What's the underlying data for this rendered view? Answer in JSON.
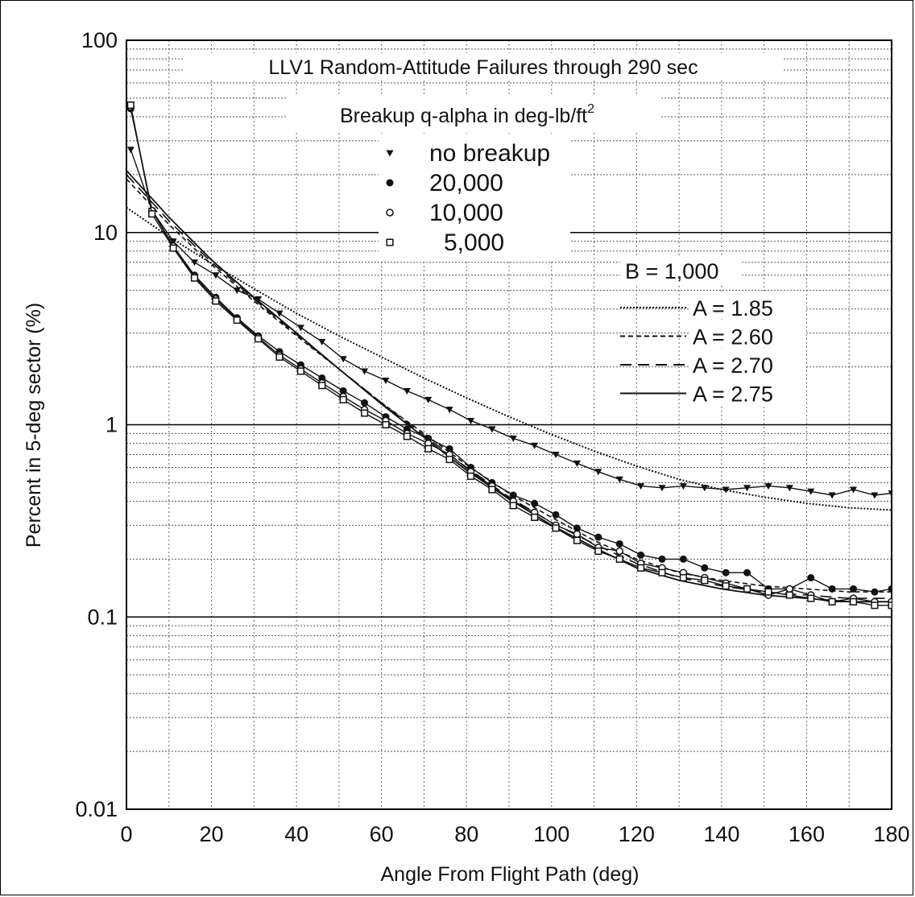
{
  "chart_data": {
    "type": "line",
    "title": "LLV1 Random-Attitude Failures through 290 sec",
    "subtitle": "Breakup q-alpha in deg-lb/ft",
    "subtitle_sup": "2",
    "xlabel": "Angle From Flight Path (deg)",
    "ylabel": "Percent in 5-deg sector (%)",
    "xlim": [
      0,
      180
    ],
    "ylim": [
      0.01,
      100
    ],
    "yscale": "log",
    "grid": true,
    "x_ticks": [
      0,
      20,
      40,
      60,
      80,
      100,
      120,
      140,
      160,
      180
    ],
    "y_ticks": [
      {
        "value": 100,
        "label": "100"
      },
      {
        "value": 10,
        "label": "10"
      },
      {
        "value": 1,
        "label": "1"
      },
      {
        "value": 0.1,
        "label": "0.1"
      },
      {
        "value": 0.01,
        "label": "0.01"
      }
    ],
    "legend_placement": "top-center",
    "x": [
      1,
      6,
      11,
      16,
      21,
      26,
      31,
      36,
      41,
      46,
      51,
      56,
      61,
      66,
      71,
      76,
      81,
      86,
      91,
      96,
      101,
      106,
      111,
      116,
      121,
      126,
      131,
      136,
      141,
      146,
      151,
      156,
      161,
      166,
      171,
      176,
      180
    ],
    "series": [
      {
        "name": "no breakup",
        "marker": "triangle",
        "values": [
          27,
          13,
          9,
          7,
          6,
          5,
          4.5,
          3.8,
          3.2,
          2.7,
          2.2,
          1.9,
          1.7,
          1.5,
          1.35,
          1.2,
          1.05,
          0.95,
          0.85,
          0.78,
          0.7,
          0.63,
          0.57,
          0.52,
          0.48,
          0.47,
          0.48,
          0.47,
          0.46,
          0.47,
          0.48,
          0.47,
          0.45,
          0.43,
          0.46,
          0.43,
          0.44
        ]
      },
      {
        "name": "20,000",
        "marker": "filled-circle",
        "values": [
          44,
          13,
          8.5,
          6,
          4.6,
          3.6,
          2.9,
          2.4,
          2.05,
          1.75,
          1.5,
          1.3,
          1.1,
          0.95,
          0.85,
          0.75,
          0.6,
          0.5,
          0.43,
          0.39,
          0.34,
          0.29,
          0.26,
          0.24,
          0.21,
          0.2,
          0.2,
          0.18,
          0.17,
          0.17,
          0.14,
          0.14,
          0.16,
          0.14,
          0.14,
          0.135,
          0.14
        ]
      },
      {
        "name": "10,000",
        "marker": "open-circle",
        "values": [
          45,
          13,
          8.5,
          5.9,
          4.5,
          3.55,
          2.85,
          2.3,
          1.95,
          1.65,
          1.4,
          1.2,
          1.05,
          0.9,
          0.8,
          0.7,
          0.57,
          0.48,
          0.4,
          0.35,
          0.3,
          0.27,
          0.23,
          0.22,
          0.19,
          0.18,
          0.17,
          0.16,
          0.15,
          0.14,
          0.13,
          0.14,
          0.13,
          0.12,
          0.125,
          0.12,
          0.12
        ]
      },
      {
        "name": "5,000",
        "marker": "open-square",
        "values": [
          46,
          12.5,
          8.3,
          5.8,
          4.4,
          3.5,
          2.8,
          2.25,
          1.9,
          1.6,
          1.35,
          1.15,
          1,
          0.87,
          0.75,
          0.66,
          0.54,
          0.46,
          0.38,
          0.33,
          0.29,
          0.25,
          0.22,
          0.2,
          0.18,
          0.17,
          0.16,
          0.155,
          0.145,
          0.14,
          0.135,
          0.13,
          0.125,
          0.12,
          0.12,
          0.115,
          0.115
        ]
      }
    ],
    "fits_label": "B = 1,000",
    "fits": [
      {
        "name": "A = 1.85",
        "style": "dotted",
        "x": [
          0,
          10,
          20,
          30,
          40,
          50,
          60,
          70,
          80,
          90,
          100,
          110,
          120,
          130,
          140,
          150,
          160,
          170,
          180
        ],
        "values": [
          13.5,
          9.5,
          6.9,
          5.1,
          3.8,
          2.9,
          2.25,
          1.75,
          1.38,
          1.1,
          0.89,
          0.73,
          0.61,
          0.52,
          0.46,
          0.42,
          0.39,
          0.37,
          0.36
        ]
      },
      {
        "name": "A = 2.60",
        "style": "short-dash",
        "x": [
          0,
          10,
          20,
          30,
          40,
          50,
          60,
          70,
          80,
          90,
          100,
          110,
          120,
          130,
          140,
          150,
          160,
          170,
          180
        ],
        "values": [
          19,
          11,
          6.8,
          4.4,
          2.9,
          1.95,
          1.3,
          0.9,
          0.62,
          0.44,
          0.33,
          0.25,
          0.2,
          0.17,
          0.155,
          0.145,
          0.14,
          0.135,
          0.135
        ]
      },
      {
        "name": "A = 2.70",
        "style": "long-dash",
        "x": [
          0,
          10,
          20,
          30,
          40,
          50,
          60,
          70,
          80,
          90,
          100,
          110,
          120,
          130,
          140,
          150,
          160,
          170,
          180
        ],
        "values": [
          20,
          11.5,
          7,
          4.5,
          2.95,
          1.95,
          1.3,
          0.88,
          0.6,
          0.42,
          0.31,
          0.24,
          0.19,
          0.16,
          0.145,
          0.135,
          0.13,
          0.125,
          0.125
        ]
      },
      {
        "name": "A = 2.75",
        "style": "solid",
        "x": [
          0,
          10,
          20,
          30,
          40,
          50,
          60,
          70,
          80,
          90,
          100,
          110,
          120,
          130,
          140,
          150,
          160,
          170,
          180
        ],
        "values": [
          21,
          12,
          7.2,
          4.6,
          3,
          1.95,
          1.28,
          0.86,
          0.58,
          0.41,
          0.3,
          0.23,
          0.18,
          0.155,
          0.14,
          0.13,
          0.125,
          0.12,
          0.12
        ]
      }
    ]
  }
}
